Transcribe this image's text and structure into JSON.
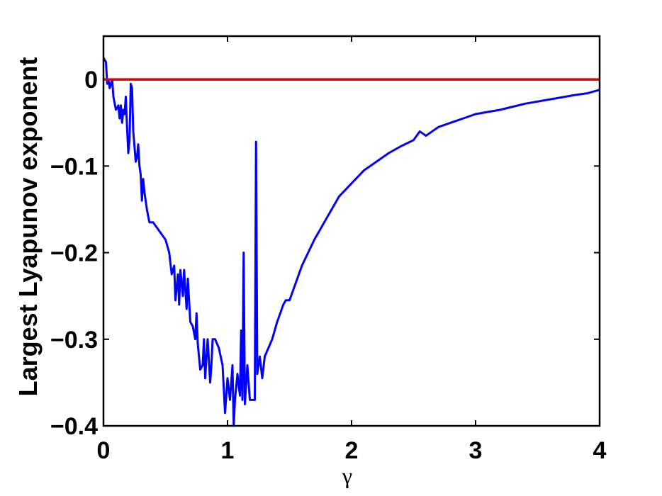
{
  "chart_data": {
    "type": "line",
    "x_label": "γ",
    "y_label": "Largest Lyapunov exponent",
    "x": [
      0,
      0.02,
      0.03,
      0.04,
      0.05,
      0.07,
      0.08,
      0.1,
      0.12,
      0.13,
      0.14,
      0.15,
      0.16,
      0.17,
      0.18,
      0.19,
      0.2,
      0.21,
      0.22,
      0.23,
      0.24,
      0.26,
      0.27,
      0.28,
      0.29,
      0.3,
      0.31,
      0.32,
      0.33,
      0.35,
      0.37,
      0.4,
      0.45,
      0.5,
      0.53,
      0.55,
      0.57,
      0.58,
      0.6,
      0.61,
      0.62,
      0.64,
      0.65,
      0.67,
      0.68,
      0.7,
      0.72,
      0.74,
      0.75,
      0.76,
      0.78,
      0.8,
      0.81,
      0.82,
      0.84,
      0.86,
      0.87,
      0.88,
      0.9,
      0.93,
      0.96,
      0.98,
      1.0,
      1.02,
      1.04,
      1.05,
      1.06,
      1.08,
      1.1,
      1.11,
      1.12,
      1.13,
      1.14,
      1.16,
      1.18,
      1.2,
      1.22,
      1.23,
      1.24,
      1.26,
      1.28,
      1.3,
      1.33,
      1.36,
      1.4,
      1.45,
      1.47,
      1.5,
      1.55,
      1.6,
      1.7,
      1.8,
      1.9,
      2.0,
      2.1,
      2.2,
      2.3,
      2.4,
      2.5,
      2.55,
      2.6,
      2.7,
      2.8,
      2.9,
      3.0,
      3.2,
      3.4,
      3.6,
      3.8,
      3.9,
      4.0
    ],
    "series": [
      {
        "color": "#0000ff",
        "values": [
          0.025,
          0.02,
          -0.005,
          0.0,
          -0.01,
          0.0,
          -0.02,
          -0.035,
          -0.03,
          -0.045,
          -0.03,
          -0.05,
          -0.035,
          -0.04,
          -0.02,
          -0.055,
          -0.085,
          -0.07,
          -0.005,
          -0.01,
          -0.06,
          -0.095,
          -0.09,
          -0.075,
          -0.1,
          -0.11,
          -0.14,
          -0.115,
          -0.13,
          -0.15,
          -0.165,
          -0.165,
          -0.175,
          -0.185,
          -0.2,
          -0.225,
          -0.215,
          -0.255,
          -0.225,
          -0.26,
          -0.22,
          -0.25,
          -0.22,
          -0.265,
          -0.23,
          -0.28,
          -0.285,
          -0.3,
          -0.27,
          -0.305,
          -0.335,
          -0.33,
          -0.3,
          -0.345,
          -0.3,
          -0.35,
          -0.33,
          -0.3,
          -0.3,
          -0.31,
          -0.33,
          -0.385,
          -0.345,
          -0.37,
          -0.33,
          -0.4,
          -0.37,
          -0.34,
          -0.365,
          -0.29,
          -0.37,
          -0.2,
          -0.375,
          -0.33,
          -0.37,
          -0.37,
          -0.37,
          -0.072,
          -0.34,
          -0.32,
          -0.345,
          -0.32,
          -0.31,
          -0.3,
          -0.28,
          -0.26,
          -0.255,
          -0.255,
          -0.235,
          -0.215,
          -0.185,
          -0.16,
          -0.135,
          -0.12,
          -0.105,
          -0.095,
          -0.085,
          -0.077,
          -0.07,
          -0.06,
          -0.065,
          -0.055,
          -0.05,
          -0.045,
          -0.04,
          -0.035,
          -0.028,
          -0.023,
          -0.018,
          -0.016,
          -0.012
        ]
      }
    ],
    "hline": {
      "value": 0,
      "color": "#e00000"
    },
    "xlim": [
      0,
      4
    ],
    "ylim": [
      -0.4,
      0.05
    ],
    "xticks": [
      0,
      1,
      2,
      3,
      4
    ],
    "yticks": [
      {
        "value": -0.4,
        "label": "−0.4"
      },
      {
        "value": -0.3,
        "label": "−0.3"
      },
      {
        "value": -0.2,
        "label": "−0.2"
      },
      {
        "value": -0.1,
        "label": "−0.1"
      },
      0
    ]
  }
}
